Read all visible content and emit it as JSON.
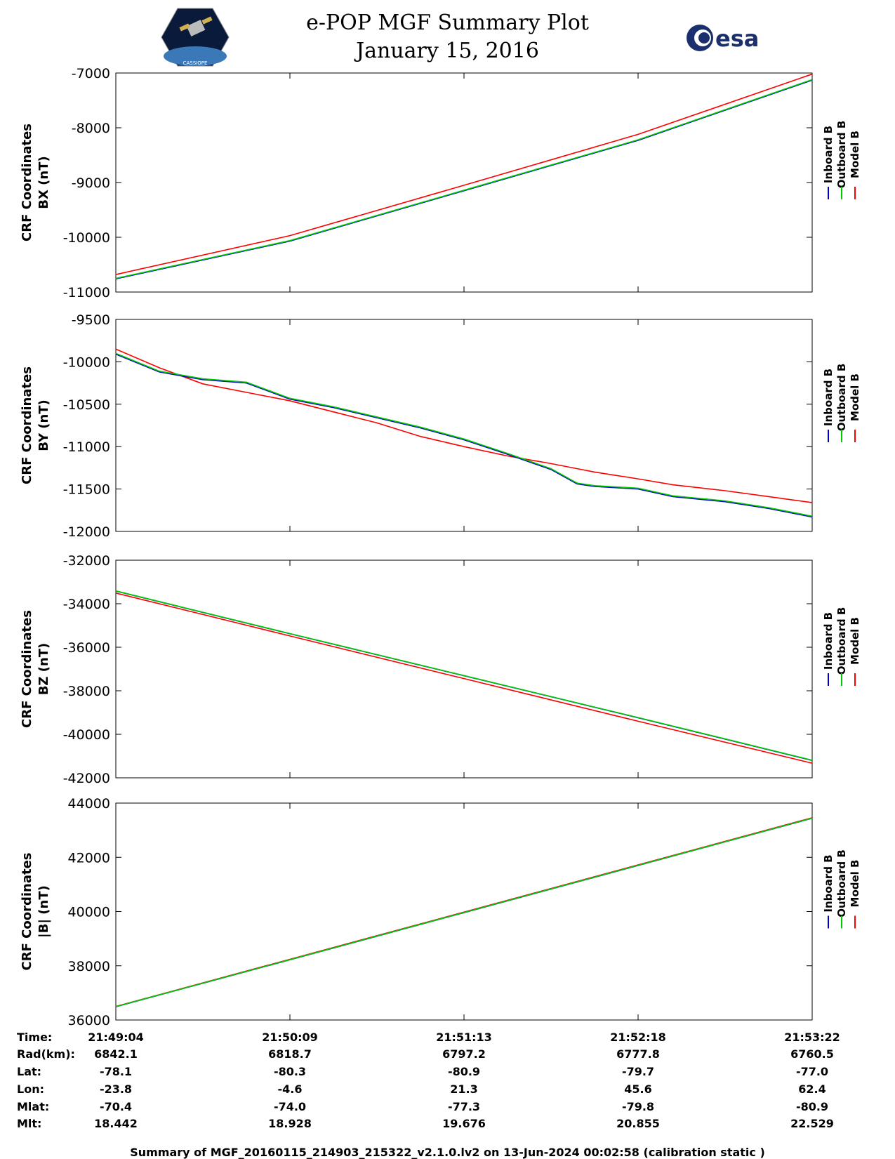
{
  "header": {
    "title": "e-POP MGF Summary Plot",
    "date": "January 15, 2016",
    "logo_left_text": "CASSIOPE",
    "logo_right_text": "esa"
  },
  "colors": {
    "inboard": "#0000cc",
    "outboard": "#00cc00",
    "model": "#ff0000"
  },
  "chart_data": [
    {
      "type": "line",
      "ylabel": "CRF Coordinates BX (nT)",
      "ylim": [
        -11000,
        -7000
      ],
      "yticks": [
        -7000,
        -8000,
        -9000,
        -10000,
        -11000
      ],
      "x": [
        0,
        1,
        2,
        3,
        4
      ],
      "series": [
        {
          "name": "Inboard B",
          "values": [
            -10760,
            -10070,
            -9150,
            -8230,
            -7130
          ]
        },
        {
          "name": "Outboard B",
          "values": [
            -10750,
            -10060,
            -9140,
            -8220,
            -7120
          ]
        },
        {
          "name": "Model B",
          "values": [
            -10680,
            -9970,
            -9050,
            -8120,
            -7020
          ]
        }
      ],
      "legend": [
        "Inboard B",
        "Outboard B",
        "Model B"
      ]
    },
    {
      "type": "line",
      "ylabel": "CRF Coordinates BY (nT)",
      "ylim": [
        -12000,
        -9500
      ],
      "yticks": [
        -9500,
        -10000,
        -10500,
        -11000,
        -11500,
        -12000
      ],
      "x": [
        0,
        0.25,
        0.5,
        0.75,
        1.0,
        1.25,
        1.5,
        1.75,
        2.0,
        2.25,
        2.5,
        2.65,
        2.75,
        3.0,
        3.2,
        3.5,
        3.75,
        4.0
      ],
      "series": [
        {
          "name": "Inboard B",
          "values": [
            -9910,
            -10120,
            -10210,
            -10250,
            -10440,
            -10540,
            -10660,
            -10780,
            -10920,
            -11090,
            -11270,
            -11440,
            -11470,
            -11500,
            -11590,
            -11650,
            -11730,
            -11830
          ]
        },
        {
          "name": "Outboard B",
          "values": [
            -9900,
            -10110,
            -10200,
            -10240,
            -10430,
            -10530,
            -10650,
            -10770,
            -10910,
            -11080,
            -11260,
            -11430,
            -11460,
            -11490,
            -11580,
            -11640,
            -11720,
            -11820
          ]
        },
        {
          "name": "Model B",
          "values": [
            -9850,
            -10070,
            -10260,
            -10360,
            -10460,
            -10590,
            -10720,
            -10880,
            -11000,
            -11110,
            -11200,
            -11260,
            -11300,
            -11380,
            -11450,
            -11520,
            -11590,
            -11660
          ]
        }
      ],
      "legend": [
        "Inboard B",
        "Outboard B",
        "Model B"
      ]
    },
    {
      "type": "line",
      "ylabel": "CRF Coordinates BZ (nT)",
      "ylim": [
        -42000,
        -32000
      ],
      "yticks": [
        -32000,
        -34000,
        -36000,
        -38000,
        -40000,
        -42000
      ],
      "x": [
        0,
        1,
        2,
        3,
        4
      ],
      "series": [
        {
          "name": "Inboard B",
          "values": [
            -33420,
            -35380,
            -37310,
            -39240,
            -41200
          ]
        },
        {
          "name": "Outboard B",
          "values": [
            -33410,
            -35370,
            -37300,
            -39230,
            -41190
          ]
        },
        {
          "name": "Model B",
          "values": [
            -33510,
            -35480,
            -37440,
            -39400,
            -41330
          ]
        }
      ],
      "legend": [
        "Inboard B",
        "Outboard B",
        "Model B"
      ]
    },
    {
      "type": "line",
      "ylabel": "CRF Coordinates |B| (nT)",
      "ylim": [
        36000,
        44000
      ],
      "yticks": [
        44000,
        42000,
        40000,
        38000,
        36000
      ],
      "x": [
        0,
        1,
        2,
        3,
        4
      ],
      "series": [
        {
          "name": "Inboard B",
          "values": [
            36490,
            38220,
            39960,
            41700,
            43440
          ]
        },
        {
          "name": "Outboard B",
          "values": [
            36495,
            38225,
            39965,
            41705,
            43445
          ]
        },
        {
          "name": "Model B",
          "values": [
            36500,
            38240,
            39980,
            41720,
            43460
          ]
        }
      ],
      "legend": [
        "Inboard B",
        "Outboard B",
        "Model B"
      ]
    }
  ],
  "table": {
    "labels": [
      "Time:",
      "Rad(km):",
      "Lat:",
      "Lon:",
      "Mlat:",
      "Mlt:"
    ],
    "columns": [
      [
        "21:49:04",
        "6842.1",
        "-78.1",
        "-23.8",
        "-70.4",
        "18.442"
      ],
      [
        "21:50:09",
        "6818.7",
        "-80.3",
        "-4.6",
        "-74.0",
        "18.928"
      ],
      [
        "21:51:13",
        "6797.2",
        "-80.9",
        "21.3",
        "-77.3",
        "19.676"
      ],
      [
        "21:52:18",
        "6777.8",
        "-79.7",
        "45.6",
        "-79.8",
        "20.855"
      ],
      [
        "21:53:22",
        "6760.5",
        "-77.0",
        "62.4",
        "-80.9",
        "22.529"
      ]
    ]
  },
  "footer": "Summary of MGF_20160115_214903_215322_v2.1.0.lv2 on 13-Jun-2024 00:02:58 (calibration static )"
}
